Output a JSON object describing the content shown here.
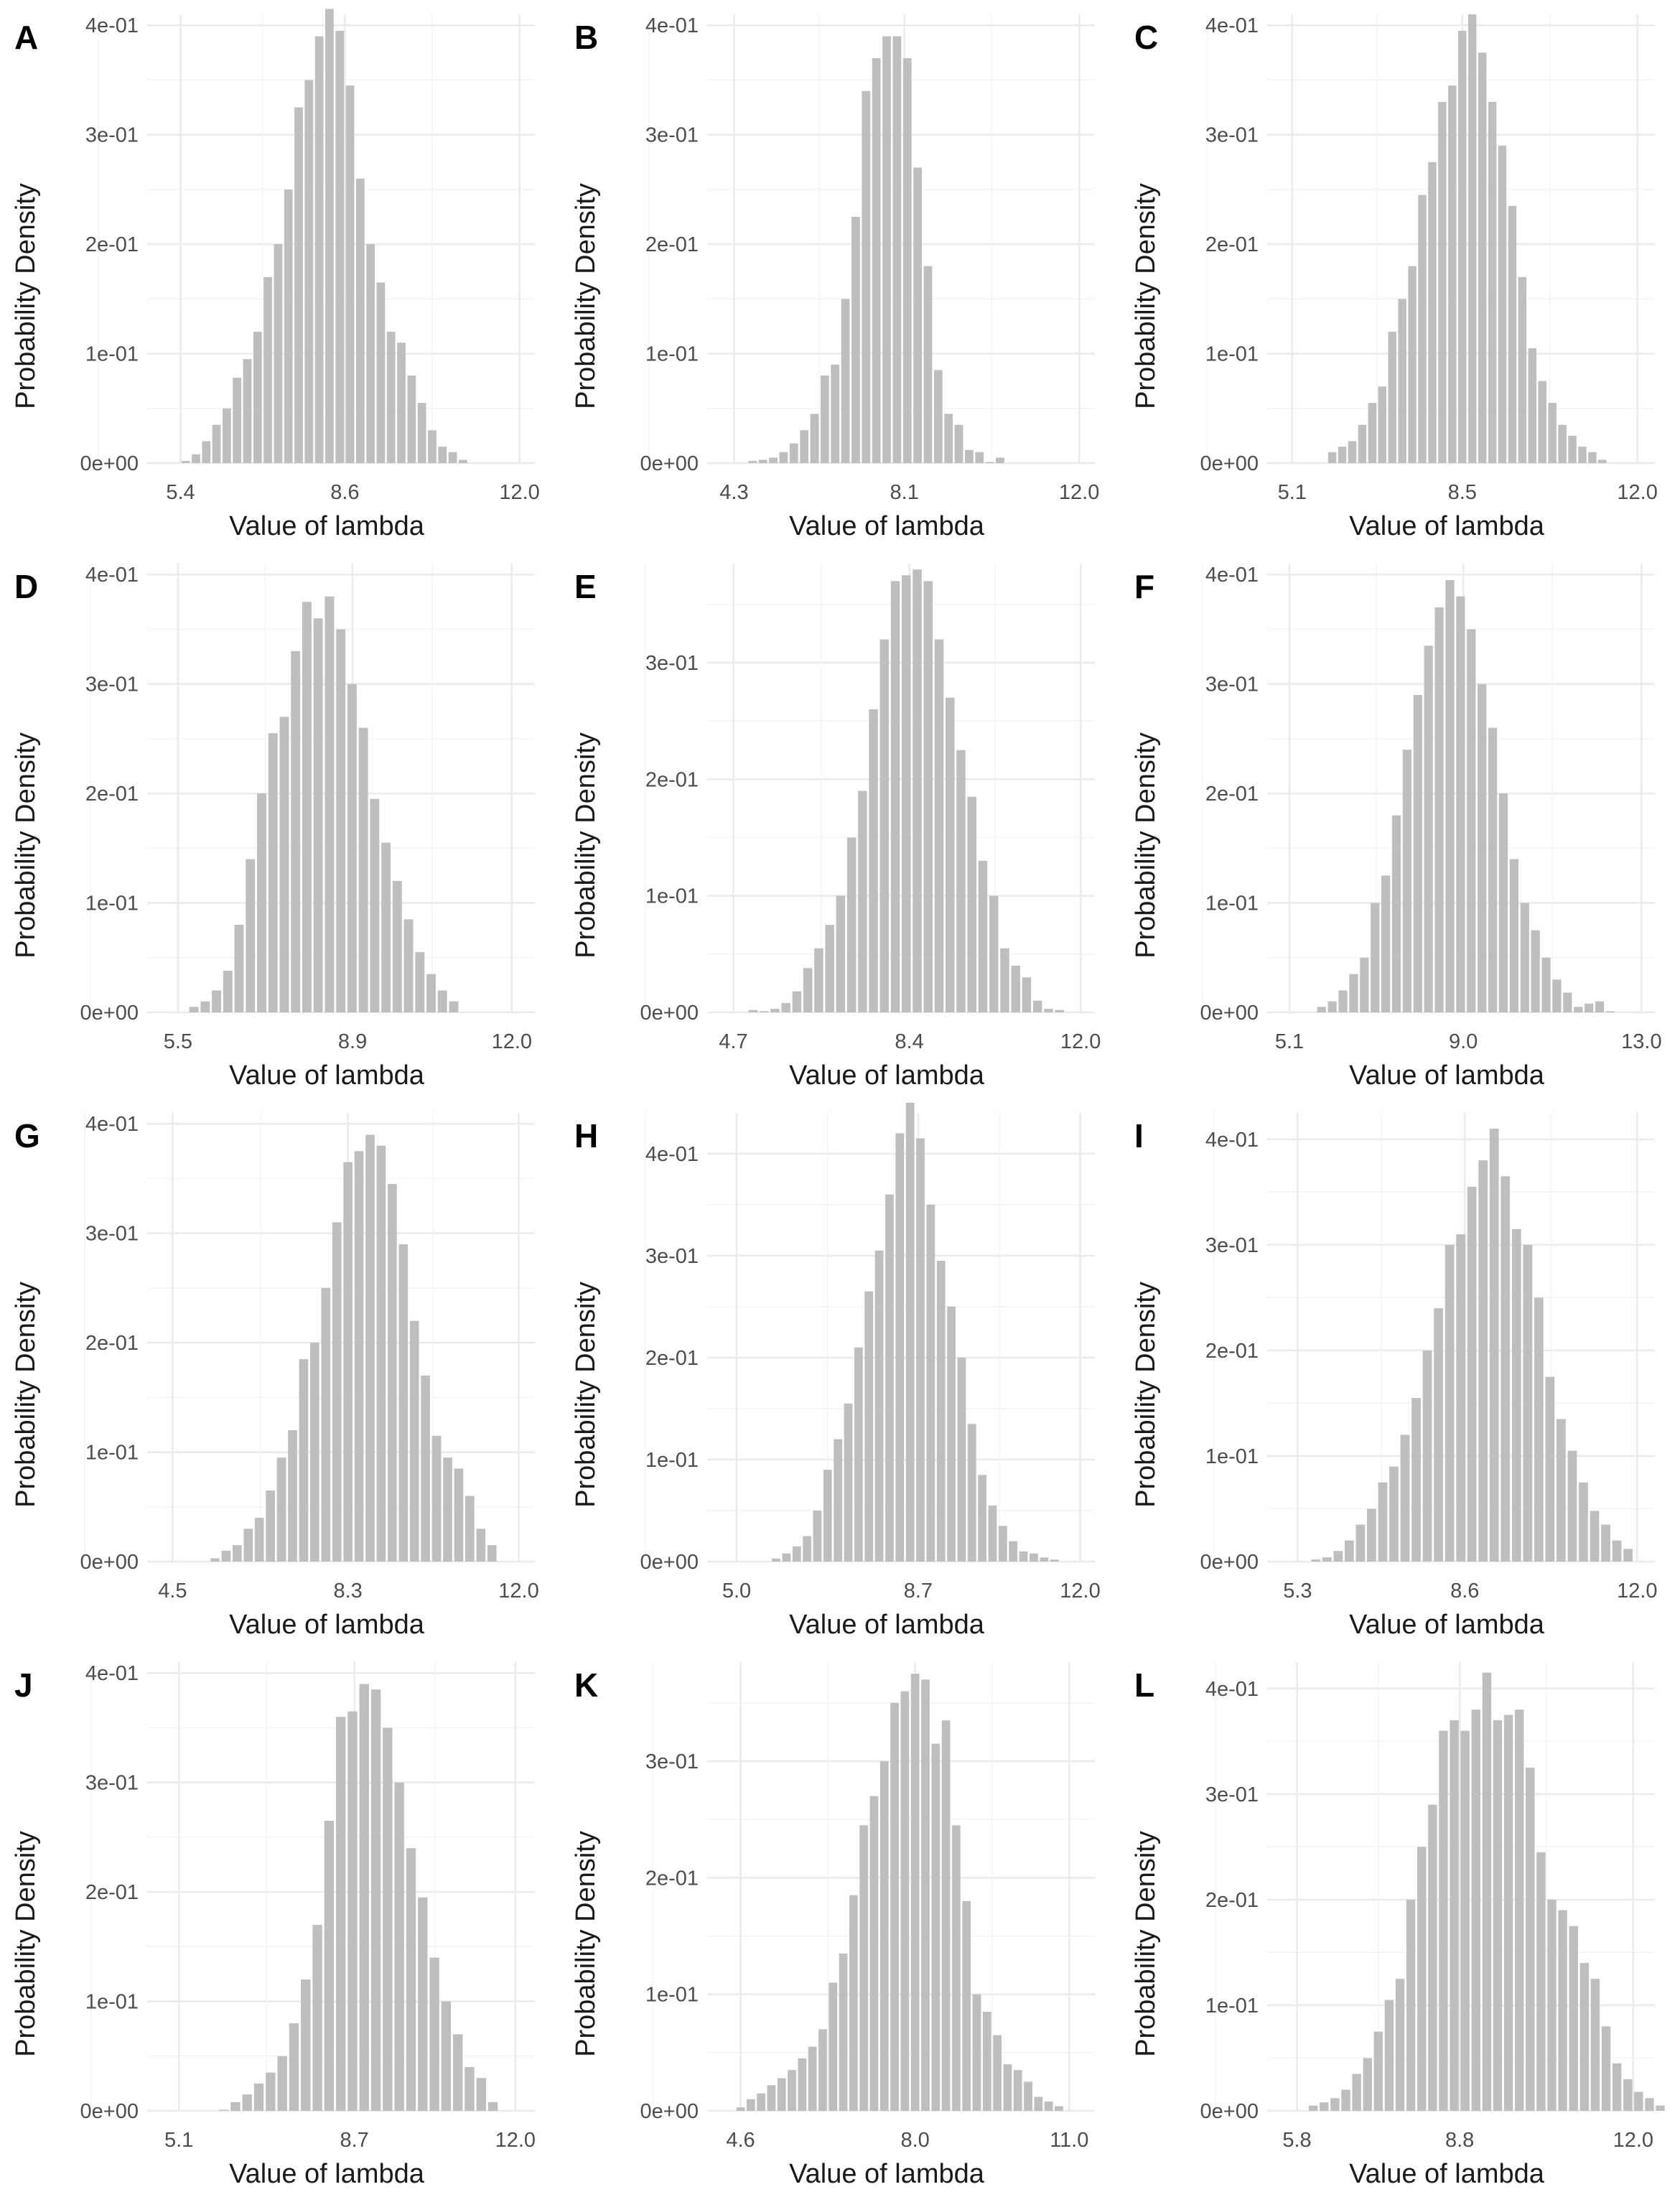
{
  "colors": {
    "bar": "#bebebe",
    "grid_major": "#ebebeb",
    "grid_minor": "#f3f3f3",
    "text": "#4d4d4d",
    "background": "#ffffff"
  },
  "chart_data": [
    {
      "panel": "A",
      "type": "bar",
      "xlabel": "Value of lambda",
      "ylabel": "Probability Density",
      "xticks": [
        "5.4",
        "8.6",
        "12.0"
      ],
      "xlim": [
        4.75,
        12.3
      ],
      "yticks": [
        "0e+00",
        "1e-01",
        "2e-01",
        "3e-01",
        "4e-01"
      ],
      "ylim": [
        0,
        0.41
      ],
      "bin_start": 5.4,
      "bin_width": 0.2,
      "values": [
        0.002,
        0.008,
        0.02,
        0.035,
        0.05,
        0.078,
        0.095,
        0.12,
        0.17,
        0.2,
        0.25,
        0.325,
        0.35,
        0.39,
        0.415,
        0.395,
        0.345,
        0.26,
        0.2,
        0.165,
        0.12,
        0.11,
        0.08,
        0.055,
        0.03,
        0.015,
        0.01,
        0.003
      ]
    },
    {
      "panel": "B",
      "type": "bar",
      "xlabel": "Value of lambda",
      "ylabel": "Probability Density",
      "xticks": [
        "4.3",
        "8.1",
        "12.0"
      ],
      "xlim": [
        3.7,
        12.35
      ],
      "yticks": [
        "0e+00",
        "1e-01",
        "2e-01",
        "3e-01",
        "4e-01"
      ],
      "ylim": [
        0,
        0.41
      ],
      "bin_start": 4.6,
      "bin_width": 0.23,
      "values": [
        0.002,
        0.003,
        0.005,
        0.01,
        0.018,
        0.03,
        0.045,
        0.08,
        0.09,
        0.15,
        0.225,
        0.34,
        0.37,
        0.39,
        0.39,
        0.37,
        0.27,
        0.18,
        0.085,
        0.045,
        0.035,
        0.012,
        0.01,
        0.001,
        0.005
      ]
    },
    {
      "panel": "C",
      "type": "bar",
      "xlabel": "Value of lambda",
      "ylabel": "Probability Density",
      "xticks": [
        "5.1",
        "8.5",
        "12.0"
      ],
      "xlim": [
        4.6,
        12.35
      ],
      "yticks": [
        "0e+00",
        "1e-01",
        "2e-01",
        "3e-01",
        "4e-01"
      ],
      "ylim": [
        0,
        0.41
      ],
      "bin_start": 5.8,
      "bin_width": 0.2,
      "values": [
        0.01,
        0.015,
        0.02,
        0.035,
        0.055,
        0.07,
        0.12,
        0.15,
        0.18,
        0.245,
        0.275,
        0.33,
        0.345,
        0.395,
        0.41,
        0.375,
        0.33,
        0.29,
        0.235,
        0.17,
        0.105,
        0.075,
        0.055,
        0.035,
        0.025,
        0.015,
        0.01,
        0.003
      ]
    },
    {
      "panel": "D",
      "type": "bar",
      "xlabel": "Value of lambda",
      "ylabel": "Probability Density",
      "xticks": [
        "5.5",
        "8.9",
        "12.0"
      ],
      "xlim": [
        4.9,
        12.45
      ],
      "yticks": [
        "0e+00",
        "1e-01",
        "2e-01",
        "3e-01",
        "4e-01"
      ],
      "ylim": [
        0,
        0.41
      ],
      "bin_start": 5.7,
      "bin_width": 0.22,
      "values": [
        0.005,
        0.01,
        0.02,
        0.038,
        0.08,
        0.14,
        0.2,
        0.255,
        0.27,
        0.33,
        0.375,
        0.36,
        0.38,
        0.35,
        0.3,
        0.26,
        0.195,
        0.155,
        0.12,
        0.085,
        0.055,
        0.035,
        0.02,
        0.01
      ]
    },
    {
      "panel": "E",
      "type": "bar",
      "xlabel": "Value of lambda",
      "ylabel": "Probability Density",
      "xticks": [
        "4.7",
        "8.4",
        "12.0"
      ],
      "xlim": [
        4.15,
        12.3
      ],
      "yticks": [
        "0e+00",
        "1e-01",
        "2e-01",
        "3e-01"
      ],
      "ylim": [
        0,
        0.385
      ],
      "bin_start": 5.0,
      "bin_width": 0.23,
      "values": [
        0.002,
        0.001,
        0.003,
        0.008,
        0.018,
        0.038,
        0.055,
        0.075,
        0.1,
        0.15,
        0.19,
        0.26,
        0.32,
        0.37,
        0.375,
        0.38,
        0.37,
        0.32,
        0.27,
        0.225,
        0.185,
        0.13,
        0.1,
        0.055,
        0.04,
        0.03,
        0.01,
        0.003,
        0.002
      ]
    },
    {
      "panel": "F",
      "type": "bar",
      "xlabel": "Value of lambda",
      "ylabel": "Probability Density",
      "xticks": [
        "5.1",
        "9.0",
        "13.0"
      ],
      "xlim": [
        4.6,
        13.3
      ],
      "yticks": [
        "0e+00",
        "1e-01",
        "2e-01",
        "3e-01",
        "4e-01"
      ],
      "ylim": [
        0,
        0.41
      ],
      "bin_start": 5.7,
      "bin_width": 0.24,
      "values": [
        0.005,
        0.01,
        0.02,
        0.035,
        0.05,
        0.1,
        0.125,
        0.18,
        0.24,
        0.29,
        0.335,
        0.37,
        0.395,
        0.38,
        0.35,
        0.3,
        0.26,
        0.2,
        0.14,
        0.1,
        0.075,
        0.05,
        0.03,
        0.018,
        0.005,
        0.008,
        0.01,
        0.001
      ]
    },
    {
      "panel": "G",
      "type": "bar",
      "xlabel": "Value of lambda",
      "ylabel": "Probability Density",
      "xticks": [
        "4.5",
        "8.3",
        "12.0"
      ],
      "xlim": [
        3.95,
        12.35
      ],
      "yticks": [
        "0e+00",
        "1e-01",
        "2e-01",
        "3e-01",
        "4e-01"
      ],
      "ylim": [
        0,
        0.41
      ],
      "bin_start": 5.3,
      "bin_width": 0.24,
      "values": [
        0.003,
        0.01,
        0.015,
        0.03,
        0.04,
        0.065,
        0.095,
        0.12,
        0.185,
        0.2,
        0.25,
        0.31,
        0.365,
        0.375,
        0.39,
        0.38,
        0.345,
        0.29,
        0.22,
        0.17,
        0.115,
        0.095,
        0.085,
        0.06,
        0.03,
        0.015
      ]
    },
    {
      "panel": "H",
      "type": "bar",
      "xlabel": "Value of lambda",
      "ylabel": "Probability Density",
      "xticks": [
        "5.0",
        "8.7",
        "12.0"
      ],
      "xlim": [
        4.4,
        12.3
      ],
      "yticks": [
        "0e+00",
        "1e-01",
        "2e-01",
        "3e-01",
        "4e-01"
      ],
      "ylim": [
        0,
        0.44
      ],
      "bin_start": 5.7,
      "bin_width": 0.21,
      "values": [
        0.003,
        0.008,
        0.015,
        0.025,
        0.05,
        0.09,
        0.12,
        0.155,
        0.21,
        0.265,
        0.305,
        0.36,
        0.42,
        0.45,
        0.415,
        0.35,
        0.295,
        0.25,
        0.2,
        0.135,
        0.085,
        0.055,
        0.035,
        0.02,
        0.01,
        0.008,
        0.004,
        0.002
      ]
    },
    {
      "panel": "I",
      "type": "bar",
      "xlabel": "Value of lambda",
      "ylabel": "Probability Density",
      "xticks": [
        "5.3",
        "8.6",
        "12.0"
      ],
      "xlim": [
        4.7,
        12.35
      ],
      "yticks": [
        "0e+00",
        "1e-01",
        "2e-01",
        "3e-01",
        "4e-01"
      ],
      "ylim": [
        0,
        0.425
      ],
      "bin_start": 5.55,
      "bin_width": 0.22,
      "values": [
        0.002,
        0.004,
        0.01,
        0.02,
        0.035,
        0.05,
        0.075,
        0.09,
        0.12,
        0.155,
        0.2,
        0.24,
        0.3,
        0.31,
        0.355,
        0.38,
        0.41,
        0.365,
        0.315,
        0.3,
        0.25,
        0.175,
        0.135,
        0.105,
        0.075,
        0.048,
        0.035,
        0.02,
        0.012
      ]
    },
    {
      "panel": "J",
      "type": "bar",
      "xlabel": "Value of lambda",
      "ylabel": "Probability Density",
      "xticks": [
        "5.1",
        "8.7",
        "12.0"
      ],
      "xlim": [
        4.45,
        12.4
      ],
      "yticks": [
        "0e+00",
        "1e-01",
        "2e-01",
        "3e-01",
        "4e-01"
      ],
      "ylim": [
        0,
        0.41
      ],
      "bin_start": 5.9,
      "bin_width": 0.24,
      "values": [
        0.001,
        0.008,
        0.015,
        0.025,
        0.035,
        0.05,
        0.08,
        0.12,
        0.17,
        0.265,
        0.36,
        0.365,
        0.39,
        0.385,
        0.35,
        0.3,
        0.24,
        0.195,
        0.14,
        0.1,
        0.07,
        0.04,
        0.03,
        0.008
      ]
    },
    {
      "panel": "K",
      "type": "bar",
      "xlabel": "Value of lambda",
      "ylabel": "Probability Density",
      "xticks": [
        "4.6",
        "8.0",
        "11.0"
      ],
      "xlim": [
        3.95,
        11.5
      ],
      "yticks": [
        "0e+00",
        "1e-01",
        "2e-01",
        "3e-01"
      ],
      "ylim": [
        0,
        0.385
      ],
      "bin_start": 4.5,
      "bin_width": 0.2,
      "values": [
        0.003,
        0.01,
        0.015,
        0.022,
        0.028,
        0.035,
        0.045,
        0.055,
        0.07,
        0.11,
        0.135,
        0.185,
        0.245,
        0.27,
        0.3,
        0.35,
        0.36,
        0.375,
        0.37,
        0.315,
        0.335,
        0.245,
        0.18,
        0.1,
        0.085,
        0.065,
        0.04,
        0.035,
        0.025,
        0.012,
        0.008,
        0.004
      ]
    },
    {
      "panel": "L",
      "type": "bar",
      "xlabel": "Value of lambda",
      "ylabel": "Probability Density",
      "xticks": [
        "5.8",
        "8.8",
        "12.0"
      ],
      "xlim": [
        5.25,
        12.4
      ],
      "yticks": [
        "0e+00",
        "1e-01",
        "2e-01",
        "3e-01",
        "4e-01"
      ],
      "ylim": [
        0,
        0.425
      ],
      "bin_start": 6.0,
      "bin_width": 0.2,
      "values": [
        0.005,
        0.008,
        0.012,
        0.02,
        0.035,
        0.05,
        0.075,
        0.105,
        0.125,
        0.2,
        0.25,
        0.29,
        0.36,
        0.37,
        0.36,
        0.38,
        0.415,
        0.37,
        0.375,
        0.38,
        0.325,
        0.245,
        0.2,
        0.19,
        0.175,
        0.14,
        0.125,
        0.08,
        0.045,
        0.03,
        0.018,
        0.012,
        0.005
      ]
    }
  ]
}
